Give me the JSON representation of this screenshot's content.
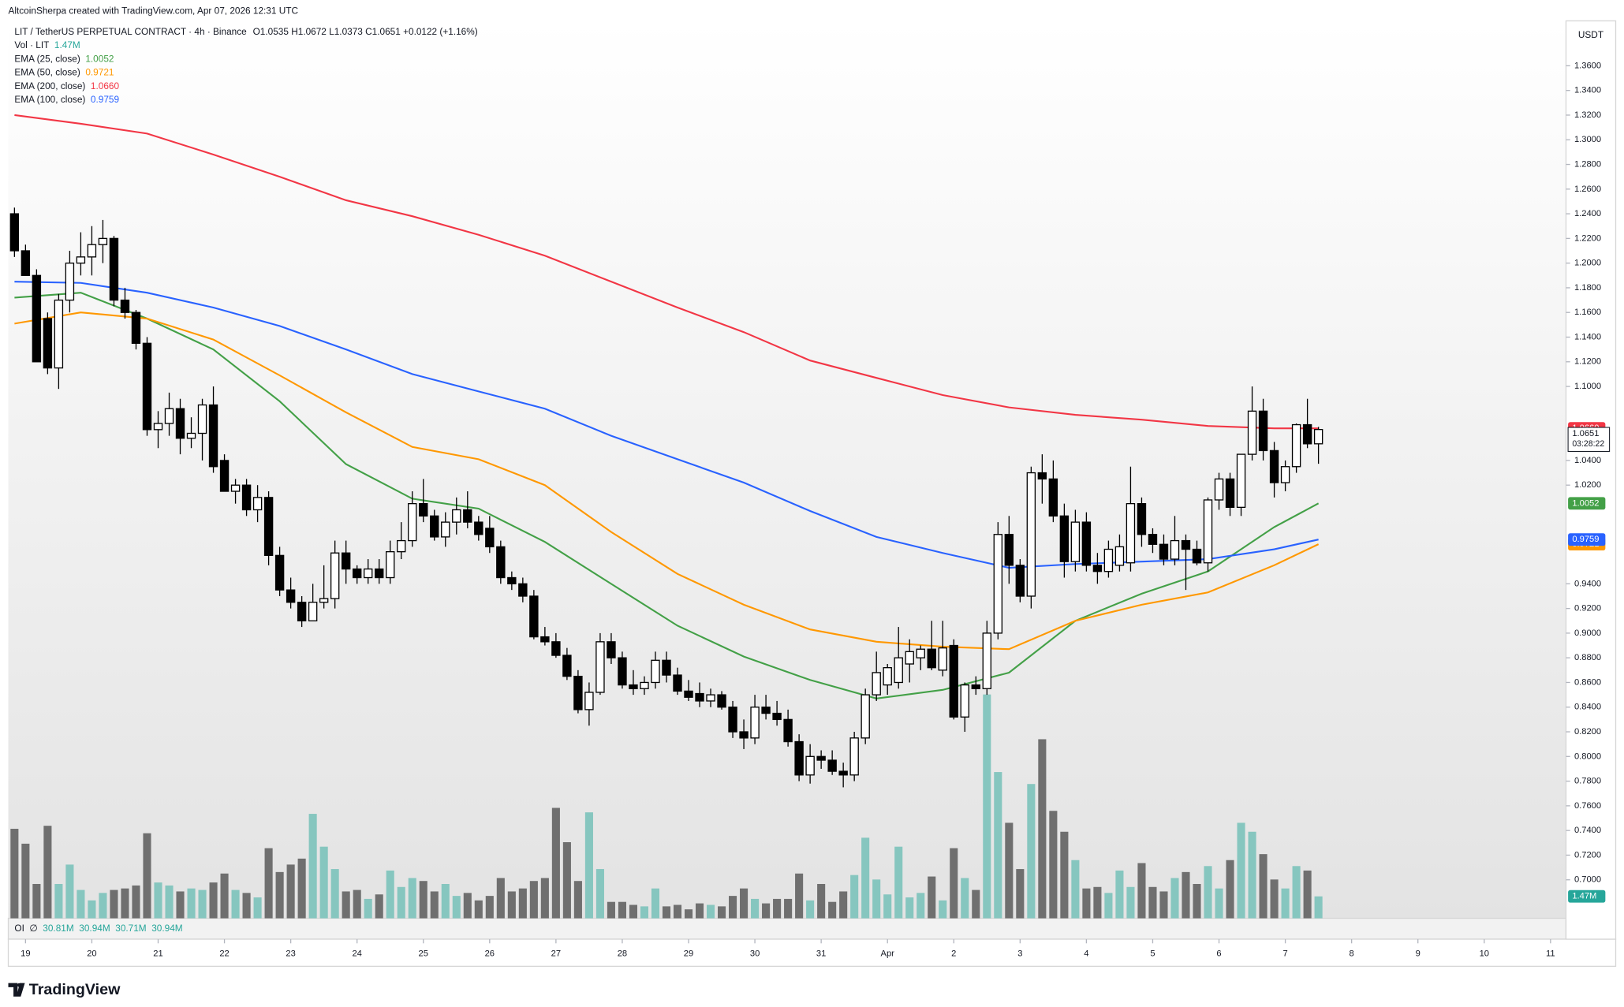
{
  "chart_data": {
    "type": "candlestick",
    "attribution": "AltcoinSherpa created with TradingView.com, Apr 07, 2026 12:31 UTC",
    "symbol": "LIT / TetherUS PERPETUAL CONTRACT · 4h · Binance",
    "ohlc_label": "O1.0535 H1.0672 L1.0373 C1.0651 +0.0122 (+1.16%)",
    "price_unit": "USDT",
    "price_label": "1.0651",
    "countdown": "03:28:22",
    "logo": "TradingView",
    "up_color": "#ffffff",
    "down_color": "#000000",
    "volume_up_color": "#86c6bf",
    "volume_down_color": "#6f6f6f",
    "grid": false,
    "xlim": [
      -0.56,
      140.4
    ],
    "ylim": [
      0.6688,
      1.3964
    ],
    "xticks": [
      {
        "value": 1,
        "label": "19"
      },
      {
        "value": 7,
        "label": "20"
      },
      {
        "value": 13,
        "label": "21"
      },
      {
        "value": 19,
        "label": "22"
      },
      {
        "value": 25,
        "label": "23"
      },
      {
        "value": 31,
        "label": "24"
      },
      {
        "value": 37,
        "label": "25"
      },
      {
        "value": 43,
        "label": "26"
      },
      {
        "value": 49,
        "label": "27"
      },
      {
        "value": 55,
        "label": "28"
      },
      {
        "value": 61,
        "label": "29"
      },
      {
        "value": 67,
        "label": "30"
      },
      {
        "value": 73,
        "label": "31"
      },
      {
        "value": 79,
        "label": "Apr"
      },
      {
        "value": 85,
        "label": "2"
      },
      {
        "value": 91,
        "label": "3"
      },
      {
        "value": 97,
        "label": "4"
      },
      {
        "value": 103,
        "label": "5"
      },
      {
        "value": 109,
        "label": "6"
      },
      {
        "value": 115,
        "label": "7"
      },
      {
        "value": 121,
        "label": "8"
      },
      {
        "value": 127,
        "label": "9"
      },
      {
        "value": 133,
        "label": "10"
      },
      {
        "value": 139,
        "label": "11"
      }
    ],
    "yticks": [
      {
        "value": 1.36,
        "label": "1.3600"
      },
      {
        "value": 1.34,
        "label": "1.3400"
      },
      {
        "value": 1.32,
        "label": "1.3200"
      },
      {
        "value": 1.3,
        "label": "1.3000"
      },
      {
        "value": 1.28,
        "label": "1.2800"
      },
      {
        "value": 1.26,
        "label": "1.2600"
      },
      {
        "value": 1.24,
        "label": "1.2400"
      },
      {
        "value": 1.22,
        "label": "1.2200"
      },
      {
        "value": 1.2,
        "label": "1.2000"
      },
      {
        "value": 1.18,
        "label": "1.1800"
      },
      {
        "value": 1.16,
        "label": "1.1600"
      },
      {
        "value": 1.14,
        "label": "1.1400"
      },
      {
        "value": 1.12,
        "label": "1.1200"
      },
      {
        "value": 1.1,
        "label": "1.1000"
      },
      {
        "value": 1.04,
        "label": "1.0400"
      },
      {
        "value": 1.02,
        "label": "1.0200"
      },
      {
        "value": 0.94,
        "label": "0.9400"
      },
      {
        "value": 0.92,
        "label": "0.9200"
      },
      {
        "value": 0.9,
        "label": "0.9000"
      },
      {
        "value": 0.88,
        "label": "0.8800"
      },
      {
        "value": 0.86,
        "label": "0.8600"
      },
      {
        "value": 0.84,
        "label": "0.8400"
      },
      {
        "value": 0.82,
        "label": "0.8200"
      },
      {
        "value": 0.8,
        "label": "0.8000"
      },
      {
        "value": 0.78,
        "label": "0.7800"
      },
      {
        "value": 0.76,
        "label": "0.7600"
      },
      {
        "value": 0.74,
        "label": "0.7400"
      },
      {
        "value": 0.72,
        "label": "0.7200"
      },
      {
        "value": 0.7,
        "label": "0.7000"
      }
    ],
    "ohlc": [
      [
        1.24,
        1.245,
        1.205,
        1.21
      ],
      [
        1.21,
        1.215,
        1.19,
        1.19
      ],
      [
        1.19,
        1.195,
        1.12,
        1.12
      ],
      [
        1.155,
        1.16,
        1.11,
        1.115
      ],
      [
        1.115,
        1.175,
        1.098,
        1.17
      ],
      [
        1.17,
        1.21,
        1.16,
        1.2
      ],
      [
        1.2,
        1.225,
        1.19,
        1.205
      ],
      [
        1.205,
        1.23,
        1.19,
        1.215
      ],
      [
        1.215,
        1.235,
        1.2,
        1.22
      ],
      [
        1.22,
        1.222,
        1.165,
        1.17
      ],
      [
        1.17,
        1.18,
        1.155,
        1.16
      ],
      [
        1.16,
        1.162,
        1.13,
        1.135
      ],
      [
        1.135,
        1.14,
        1.06,
        1.065
      ],
      [
        1.065,
        1.08,
        1.05,
        1.07
      ],
      [
        1.07,
        1.095,
        1.06,
        1.082
      ],
      [
        1.082,
        1.09,
        1.045,
        1.058
      ],
      [
        1.058,
        1.075,
        1.05,
        1.062
      ],
      [
        1.062,
        1.09,
        1.04,
        1.085
      ],
      [
        1.085,
        1.1,
        1.03,
        1.035
      ],
      [
        1.04,
        1.045,
        1.015,
        1.015
      ],
      [
        1.015,
        1.025,
        1.005,
        1.02
      ],
      [
        1.02,
        1.025,
        0.995,
        1.0
      ],
      [
        1.0,
        1.02,
        0.99,
        1.01
      ],
      [
        1.01,
        1.015,
        0.955,
        0.963
      ],
      [
        0.963,
        0.97,
        0.93,
        0.935
      ],
      [
        0.935,
        0.945,
        0.92,
        0.925
      ],
      [
        0.925,
        0.93,
        0.905,
        0.91
      ],
      [
        0.91,
        0.94,
        0.91,
        0.925
      ],
      [
        0.925,
        0.955,
        0.92,
        0.928
      ],
      [
        0.928,
        0.975,
        0.92,
        0.965
      ],
      [
        0.965,
        0.975,
        0.94,
        0.952
      ],
      [
        0.952,
        0.955,
        0.94,
        0.945
      ],
      [
        0.945,
        0.96,
        0.94,
        0.952
      ],
      [
        0.952,
        0.96,
        0.94,
        0.945
      ],
      [
        0.945,
        0.975,
        0.94,
        0.966
      ],
      [
        0.966,
        0.99,
        0.96,
        0.975
      ],
      [
        0.975,
        1.015,
        0.97,
        1.005
      ],
      [
        1.005,
        1.025,
        0.99,
        0.995
      ],
      [
        0.995,
        1.0,
        0.975,
        0.978
      ],
      [
        0.978,
        0.998,
        0.97,
        0.99
      ],
      [
        0.99,
        1.01,
        0.98,
        1.0
      ],
      [
        1.0,
        1.015,
        0.985,
        0.99
      ],
      [
        0.99,
        0.995,
        0.975,
        0.98
      ],
      [
        0.985,
        0.995,
        0.965,
        0.97
      ],
      [
        0.97,
        0.975,
        0.94,
        0.945
      ],
      [
        0.945,
        0.95,
        0.935,
        0.94
      ],
      [
        0.94,
        0.945,
        0.925,
        0.93
      ],
      [
        0.93,
        0.935,
        0.895,
        0.897
      ],
      [
        0.897,
        0.905,
        0.89,
        0.893
      ],
      [
        0.893,
        0.9,
        0.88,
        0.882
      ],
      [
        0.882,
        0.888,
        0.862,
        0.865
      ],
      [
        0.865,
        0.87,
        0.835,
        0.838
      ],
      [
        0.838,
        0.86,
        0.825,
        0.852
      ],
      [
        0.852,
        0.9,
        0.85,
        0.893
      ],
      [
        0.893,
        0.9,
        0.875,
        0.88
      ],
      [
        0.88,
        0.885,
        0.855,
        0.858
      ],
      [
        0.858,
        0.87,
        0.85,
        0.855
      ],
      [
        0.855,
        0.865,
        0.85,
        0.86
      ],
      [
        0.86,
        0.885,
        0.855,
        0.878
      ],
      [
        0.878,
        0.885,
        0.86,
        0.866
      ],
      [
        0.866,
        0.872,
        0.85,
        0.853
      ],
      [
        0.853,
        0.862,
        0.845,
        0.848
      ],
      [
        0.851,
        0.86,
        0.84,
        0.845
      ],
      [
        0.845,
        0.855,
        0.84,
        0.85
      ],
      [
        0.85,
        0.853,
        0.838,
        0.84
      ],
      [
        0.84,
        0.845,
        0.815,
        0.82
      ],
      [
        0.82,
        0.83,
        0.806,
        0.815
      ],
      [
        0.815,
        0.85,
        0.81,
        0.84
      ],
      [
        0.84,
        0.85,
        0.83,
        0.835
      ],
      [
        0.835,
        0.845,
        0.825,
        0.83
      ],
      [
        0.83,
        0.838,
        0.808,
        0.812
      ],
      [
        0.812,
        0.818,
        0.78,
        0.785
      ],
      [
        0.785,
        0.81,
        0.778,
        0.8
      ],
      [
        0.8,
        0.805,
        0.79,
        0.797
      ],
      [
        0.797,
        0.805,
        0.785,
        0.788
      ],
      [
        0.788,
        0.795,
        0.775,
        0.785
      ],
      [
        0.785,
        0.82,
        0.78,
        0.815
      ],
      [
        0.815,
        0.855,
        0.81,
        0.85
      ],
      [
        0.85,
        0.885,
        0.845,
        0.868
      ],
      [
        0.858,
        0.875,
        0.85,
        0.872
      ],
      [
        0.86,
        0.905,
        0.855,
        0.88
      ],
      [
        0.875,
        0.895,
        0.86,
        0.885
      ],
      [
        0.88,
        0.89,
        0.87,
        0.887
      ],
      [
        0.887,
        0.91,
        0.87,
        0.872
      ],
      [
        0.87,
        0.91,
        0.865,
        0.888
      ],
      [
        0.89,
        0.895,
        0.83,
        0.832
      ],
      [
        0.832,
        0.86,
        0.82,
        0.858
      ],
      [
        0.858,
        0.865,
        0.85,
        0.855
      ],
      [
        0.855,
        0.91,
        0.85,
        0.9
      ],
      [
        0.9,
        0.99,
        0.895,
        0.98
      ],
      [
        0.98,
        0.995,
        0.94,
        0.955
      ],
      [
        0.955,
        0.96,
        0.925,
        0.93
      ],
      [
        0.93,
        1.035,
        0.92,
        1.03
      ],
      [
        1.03,
        1.045,
        1.005,
        1.025
      ],
      [
        1.025,
        1.04,
        0.99,
        0.995
      ],
      [
        0.995,
        1.005,
        0.945,
        0.958
      ],
      [
        0.958,
        1.0,
        0.95,
        0.99
      ],
      [
        0.99,
        0.998,
        0.95,
        0.955
      ],
      [
        0.955,
        0.965,
        0.94,
        0.95
      ],
      [
        0.95,
        0.975,
        0.945,
        0.968
      ],
      [
        0.955,
        0.98,
        0.95,
        0.97
      ],
      [
        0.957,
        1.035,
        0.95,
        1.005
      ],
      [
        1.005,
        1.01,
        0.97,
        0.98
      ],
      [
        0.98,
        0.985,
        0.965,
        0.972
      ],
      [
        0.972,
        0.98,
        0.955,
        0.96
      ],
      [
        0.96,
        0.995,
        0.955,
        0.975
      ],
      [
        0.975,
        0.98,
        0.935,
        0.968
      ],
      [
        0.968,
        0.975,
        0.955,
        0.957
      ],
      [
        0.957,
        1.01,
        0.95,
        1.008
      ],
      [
        1.008,
        1.03,
        1.0,
        1.025
      ],
      [
        1.025,
        1.03,
        0.995,
        1.002
      ],
      [
        1.002,
        1.045,
        0.995,
        1.045
      ],
      [
        1.045,
        1.1,
        1.04,
        1.08
      ],
      [
        1.08,
        1.09,
        1.04,
        1.048
      ],
      [
        1.048,
        1.055,
        1.01,
        1.022
      ],
      [
        1.022,
        1.04,
        1.015,
        1.035
      ],
      [
        1.035,
        1.07,
        1.03,
        1.069
      ],
      [
        1.069,
        1.09,
        1.05,
        1.0535
      ],
      [
        1.0535,
        1.0672,
        1.0373,
        1.0651
      ]
    ],
    "volume": {
      "name": "Vol · LIT",
      "last_label": "1.47M",
      "vlim": [
        0,
        20
      ],
      "values": [
        6,
        5,
        2.3,
        6.2,
        2.3,
        3.6,
        1.9,
        1.2,
        1.7,
        1.9,
        2.0,
        2.2,
        5.7,
        2.4,
        2.2,
        1.8,
        2.0,
        1.9,
        2.4,
        3.0,
        1.9,
        1.7,
        1.4,
        4.7,
        3.1,
        3.6,
        4.0,
        7.0,
        4.8,
        3.3,
        1.8,
        1.9,
        1.3,
        1.6,
        3.2,
        2.1,
        2.7,
        2.5,
        1.8,
        2.3,
        1.5,
        1.7,
        1.2,
        1.5,
        2.7,
        1.8,
        2.0,
        2.5,
        2.7,
        7.4,
        5.1,
        2.5,
        7.1,
        3.3,
        1.1,
        1.1,
        0.9,
        0.8,
        2.0,
        0.8,
        0.9,
        0.6,
        1.0,
        0.9,
        0.8,
        1.5,
        2.0,
        1.3,
        1.0,
        1.3,
        1.3,
        3.0,
        1.2,
        2.3,
        1.1,
        1.8,
        2.9,
        5.4,
        2.6,
        1.6,
        4.8,
        1.4,
        1.7,
        2.8,
        1.2,
        4.7,
        2.7,
        1.9,
        15.0,
        9.8,
        6.4,
        3.3,
        9.0,
        12.0,
        7.2,
        5.8,
        3.9,
        2.0,
        2.1,
        1.7,
        3.2,
        2.1,
        3.7,
        2.1,
        1.8,
        2.7,
        3.1,
        2.3,
        3.5,
        2.0,
        3.9,
        6.4,
        5.8,
        4.3,
        2.6,
        2.0,
        3.5,
        3.2,
        1.47
      ]
    },
    "series": [
      {
        "name": "EMA (25, close)",
        "color": "#43a047",
        "last_label": "1.0052",
        "x": [
          0,
          6,
          12,
          18,
          24,
          30,
          36,
          42,
          48,
          54,
          60,
          66,
          72,
          78,
          84,
          90,
          96,
          102,
          108,
          114,
          118
        ],
        "values": [
          1.172,
          1.176,
          1.155,
          1.13,
          1.088,
          1.037,
          1.009,
          1.001,
          0.974,
          0.94,
          0.906,
          0.881,
          0.862,
          0.847,
          0.854,
          0.868,
          0.91,
          0.932,
          0.95,
          0.986,
          1.0052
        ]
      },
      {
        "name": "EMA (50, close)",
        "color": "#ff9800",
        "last_label": "0.9721",
        "x": [
          0,
          6,
          12,
          18,
          24,
          30,
          36,
          42,
          48,
          54,
          60,
          66,
          72,
          78,
          84,
          90,
          96,
          102,
          108,
          114,
          118
        ],
        "values": [
          1.151,
          1.16,
          1.155,
          1.138,
          1.109,
          1.079,
          1.051,
          1.041,
          1.02,
          0.982,
          0.948,
          0.923,
          0.903,
          0.893,
          0.889,
          0.887,
          0.91,
          0.923,
          0.933,
          0.955,
          0.9721
        ]
      },
      {
        "name": "EMA (200, close)",
        "color": "#f23645",
        "last_label": "1.0660",
        "x": [
          0,
          6,
          12,
          18,
          24,
          30,
          36,
          42,
          48,
          54,
          60,
          66,
          72,
          78,
          84,
          90,
          96,
          102,
          108,
          114,
          118
        ],
        "values": [
          1.32,
          1.313,
          1.305,
          1.288,
          1.27,
          1.251,
          1.238,
          1.223,
          1.206,
          1.185,
          1.164,
          1.144,
          1.121,
          1.107,
          1.093,
          1.083,
          1.077,
          1.073,
          1.068,
          1.066,
          1.066
        ]
      },
      {
        "name": "EMA (100, close)",
        "color": "#2962ff",
        "last_label": "0.9759",
        "x": [
          0,
          6,
          12,
          18,
          24,
          30,
          36,
          42,
          48,
          54,
          60,
          66,
          72,
          78,
          84,
          90,
          96,
          102,
          108,
          114,
          118
        ],
        "values": [
          1.185,
          1.184,
          1.176,
          1.164,
          1.149,
          1.13,
          1.11,
          1.096,
          1.082,
          1.06,
          1.041,
          1.022,
          0.999,
          0.978,
          0.965,
          0.953,
          0.956,
          0.958,
          0.96,
          0.968,
          0.9759
        ]
      }
    ],
    "oi": {
      "label": "OI",
      "symbol": "∅",
      "values_labels": [
        "30.81M",
        "30.94M",
        "30.71M",
        "30.94M"
      ],
      "color": "#26a69a"
    }
  }
}
